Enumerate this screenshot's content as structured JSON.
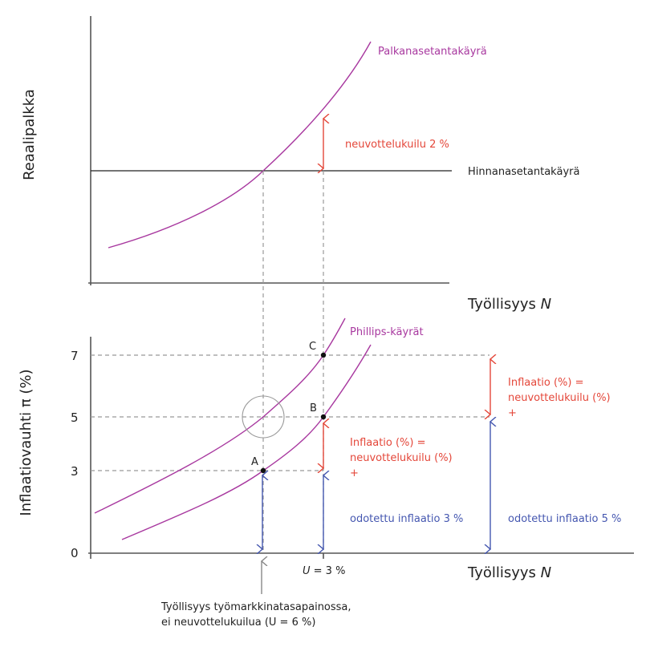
{
  "top_panel": {
    "y_label": "Reaalipalkka",
    "x_label": "Työllisyys",
    "x_label_var": "N",
    "wage_curve_label": "Palkanasetantakäyrä",
    "price_curve_label": "Hinnanasetantakäyrä",
    "gap_label": "neuvottelukuilu 2 %"
  },
  "bottom_panel": {
    "y_label": "Inflaatiovauhti π (%)",
    "x_label": "Työllisyys",
    "x_label_var": "N",
    "y_ticks": [
      "7",
      "5",
      "3",
      "0"
    ],
    "curves_label": "Phillips-käyrät",
    "points": [
      "A",
      "B",
      "C"
    ],
    "gap_label_1": [
      "Inflaatio (%) =",
      "neuvottelukuilu (%)",
      "+"
    ],
    "gap_label_2": [
      "Inflaatio (%) =",
      "neuvottelukuilu (%)",
      "+"
    ],
    "expected_label_1": "odotettu inflaatio 3 %",
    "expected_label_2": "odotettu inflaatio 5 %",
    "u_label_var": "U",
    "u_label_rest": " = 3 %",
    "equilibrium_note": [
      "Työllisyys työmarkkinatasapainossa,",
      "ei neuvottelukuilua (U = 6 %)"
    ]
  },
  "colors": {
    "curve": "#a8389f",
    "gap": "#e4473a",
    "expected": "#4557b0",
    "axis": "#555555"
  }
}
